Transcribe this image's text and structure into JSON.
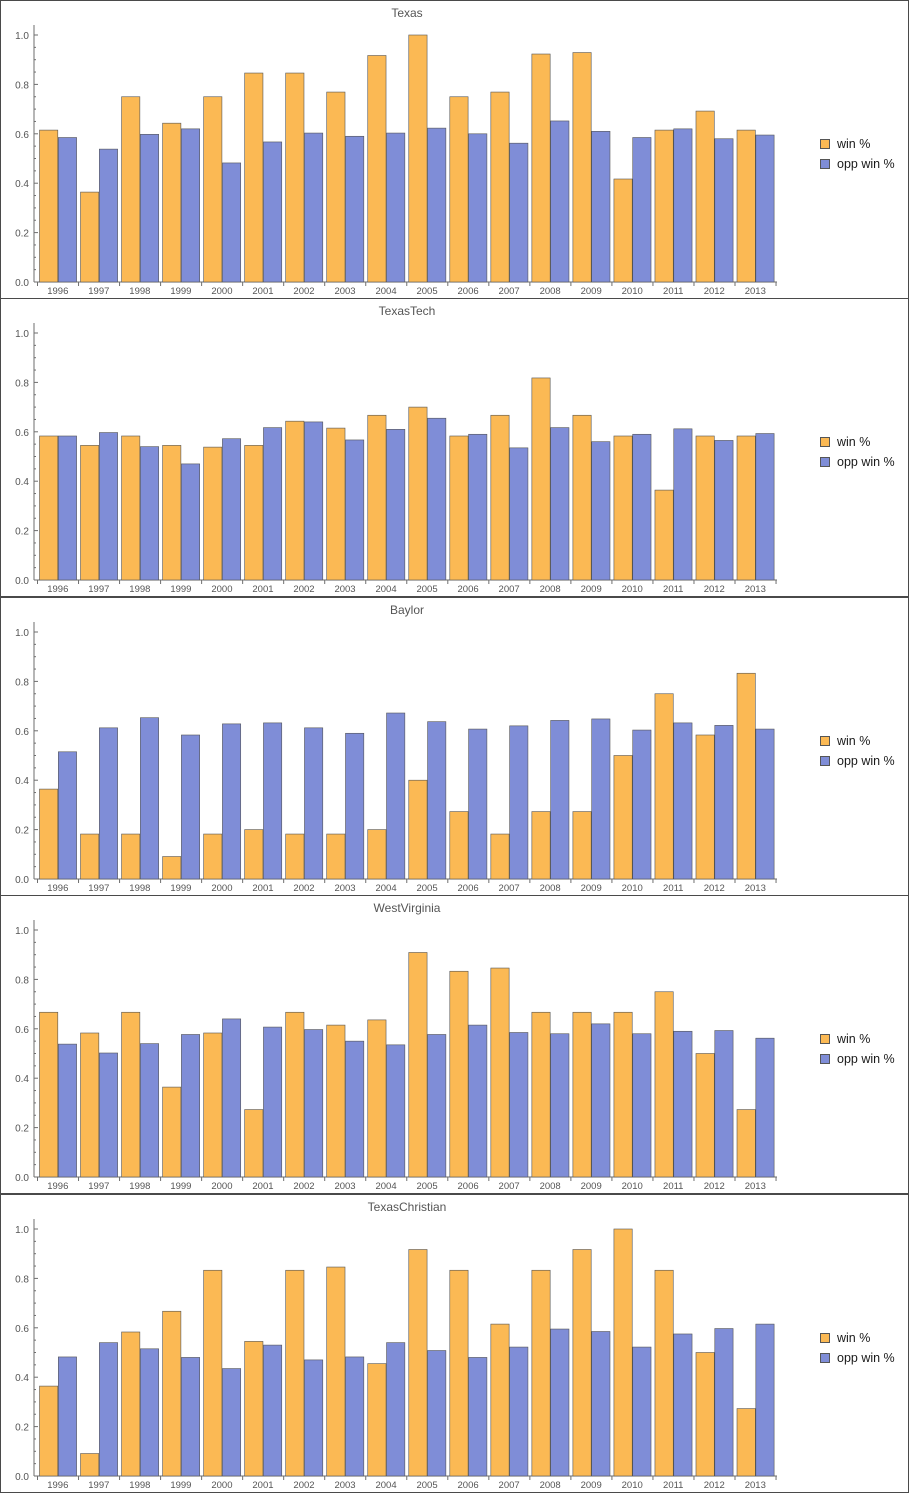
{
  "legend": {
    "win_label": "win %",
    "opp_label": "opp win %"
  },
  "colors": {
    "win": "#FBB954",
    "opp": "#7F8DD7",
    "axis": "#6e6e6e",
    "text": "#555555"
  },
  "chart_data": [
    {
      "type": "bar",
      "title": "Texas",
      "categories": [
        "1996",
        "1997",
        "1998",
        "1999",
        "2000",
        "2001",
        "2002",
        "2003",
        "2004",
        "2005",
        "2006",
        "2007",
        "2008",
        "2009",
        "2010",
        "2011",
        "2012",
        "2013"
      ],
      "ylim": [
        0,
        1.0
      ],
      "yticks": [
        "0.0",
        "0.2",
        "0.4",
        "0.6",
        "0.8",
        "1.0"
      ],
      "series": [
        {
          "name": "win %",
          "values": [
            0.615,
            0.364,
            0.75,
            0.643,
            0.75,
            0.846,
            0.846,
            0.769,
            0.917,
            1.0,
            0.75,
            0.769,
            0.923,
            0.929,
            0.417,
            0.615,
            0.692,
            0.615
          ]
        },
        {
          "name": "opp win %",
          "values": [
            0.585,
            0.538,
            0.598,
            0.62,
            0.482,
            0.567,
            0.603,
            0.59,
            0.603,
            0.623,
            0.6,
            0.562,
            0.652,
            0.61,
            0.585,
            0.62,
            0.58,
            0.595
          ]
        }
      ]
    },
    {
      "type": "bar",
      "title": "TexasTech",
      "categories": [
        "1996",
        "1997",
        "1998",
        "1999",
        "2000",
        "2001",
        "2002",
        "2003",
        "2004",
        "2005",
        "2006",
        "2007",
        "2008",
        "2009",
        "2010",
        "2011",
        "2012",
        "2013"
      ],
      "ylim": [
        0,
        1.0
      ],
      "yticks": [
        "0.0",
        "0.2",
        "0.4",
        "0.6",
        "0.8",
        "1.0"
      ],
      "series": [
        {
          "name": "win %",
          "values": [
            0.583,
            0.545,
            0.583,
            0.545,
            0.538,
            0.545,
            0.643,
            0.615,
            0.667,
            0.7,
            0.583,
            0.667,
            0.818,
            0.667,
            0.583,
            0.364,
            0.583,
            0.583
          ]
        },
        {
          "name": "opp win %",
          "values": [
            0.583,
            0.597,
            0.54,
            0.47,
            0.572,
            0.617,
            0.64,
            0.567,
            0.61,
            0.655,
            0.59,
            0.535,
            0.617,
            0.56,
            0.59,
            0.612,
            0.565,
            0.593
          ]
        }
      ]
    },
    {
      "type": "bar",
      "title": "Baylor",
      "categories": [
        "1996",
        "1997",
        "1998",
        "1999",
        "2000",
        "2001",
        "2002",
        "2003",
        "2004",
        "2005",
        "2006",
        "2007",
        "2008",
        "2009",
        "2010",
        "2011",
        "2012",
        "2013"
      ],
      "ylim": [
        0,
        1.0
      ],
      "yticks": [
        "0.0",
        "0.2",
        "0.4",
        "0.6",
        "0.8",
        "1.0"
      ],
      "series": [
        {
          "name": "win %",
          "values": [
            0.364,
            0.182,
            0.182,
            0.091,
            0.182,
            0.2,
            0.182,
            0.182,
            0.2,
            0.4,
            0.273,
            0.182,
            0.273,
            0.273,
            0.5,
            0.75,
            0.583,
            0.833
          ]
        },
        {
          "name": "opp win %",
          "values": [
            0.515,
            0.612,
            0.653,
            0.583,
            0.628,
            0.632,
            0.612,
            0.59,
            0.672,
            0.637,
            0.607,
            0.62,
            0.642,
            0.648,
            0.603,
            0.632,
            0.622,
            0.607
          ]
        }
      ]
    },
    {
      "type": "bar",
      "title": "WestVirginia",
      "categories": [
        "1996",
        "1997",
        "1998",
        "1999",
        "2000",
        "2001",
        "2002",
        "2003",
        "2004",
        "2005",
        "2006",
        "2007",
        "2008",
        "2009",
        "2010",
        "2011",
        "2012",
        "2013"
      ],
      "ylim": [
        0,
        1.0
      ],
      "yticks": [
        "0.0",
        "0.2",
        "0.4",
        "0.6",
        "0.8",
        "1.0"
      ],
      "series": [
        {
          "name": "win %",
          "values": [
            0.667,
            0.583,
            0.667,
            0.364,
            0.583,
            0.273,
            0.667,
            0.615,
            0.636,
            0.909,
            0.833,
            0.846,
            0.667,
            0.667,
            0.667,
            0.75,
            0.5,
            0.273
          ]
        },
        {
          "name": "opp win %",
          "values": [
            0.538,
            0.502,
            0.54,
            0.577,
            0.64,
            0.607,
            0.597,
            0.55,
            0.535,
            0.577,
            0.615,
            0.585,
            0.58,
            0.62,
            0.58,
            0.59,
            0.593,
            0.562
          ]
        }
      ]
    },
    {
      "type": "bar",
      "title": "TexasChristian",
      "categories": [
        "1996",
        "1997",
        "1998",
        "1999",
        "2000",
        "2001",
        "2002",
        "2003",
        "2004",
        "2005",
        "2006",
        "2007",
        "2008",
        "2009",
        "2010",
        "2011",
        "2012",
        "2013"
      ],
      "ylim": [
        0,
        1.0
      ],
      "yticks": [
        "0.0",
        "0.2",
        "0.4",
        "0.6",
        "0.8",
        "1.0"
      ],
      "series": [
        {
          "name": "win %",
          "values": [
            0.364,
            0.091,
            0.583,
            0.667,
            0.833,
            0.545,
            0.833,
            0.846,
            0.455,
            0.917,
            0.833,
            0.615,
            0.833,
            0.917,
            1.0,
            0.833,
            0.5,
            0.273
          ]
        },
        {
          "name": "opp win %",
          "values": [
            0.482,
            0.54,
            0.515,
            0.48,
            0.435,
            0.53,
            0.47,
            0.482,
            0.54,
            0.508,
            0.48,
            0.522,
            0.595,
            0.585,
            0.522,
            0.575,
            0.597,
            0.615
          ]
        }
      ]
    }
  ]
}
